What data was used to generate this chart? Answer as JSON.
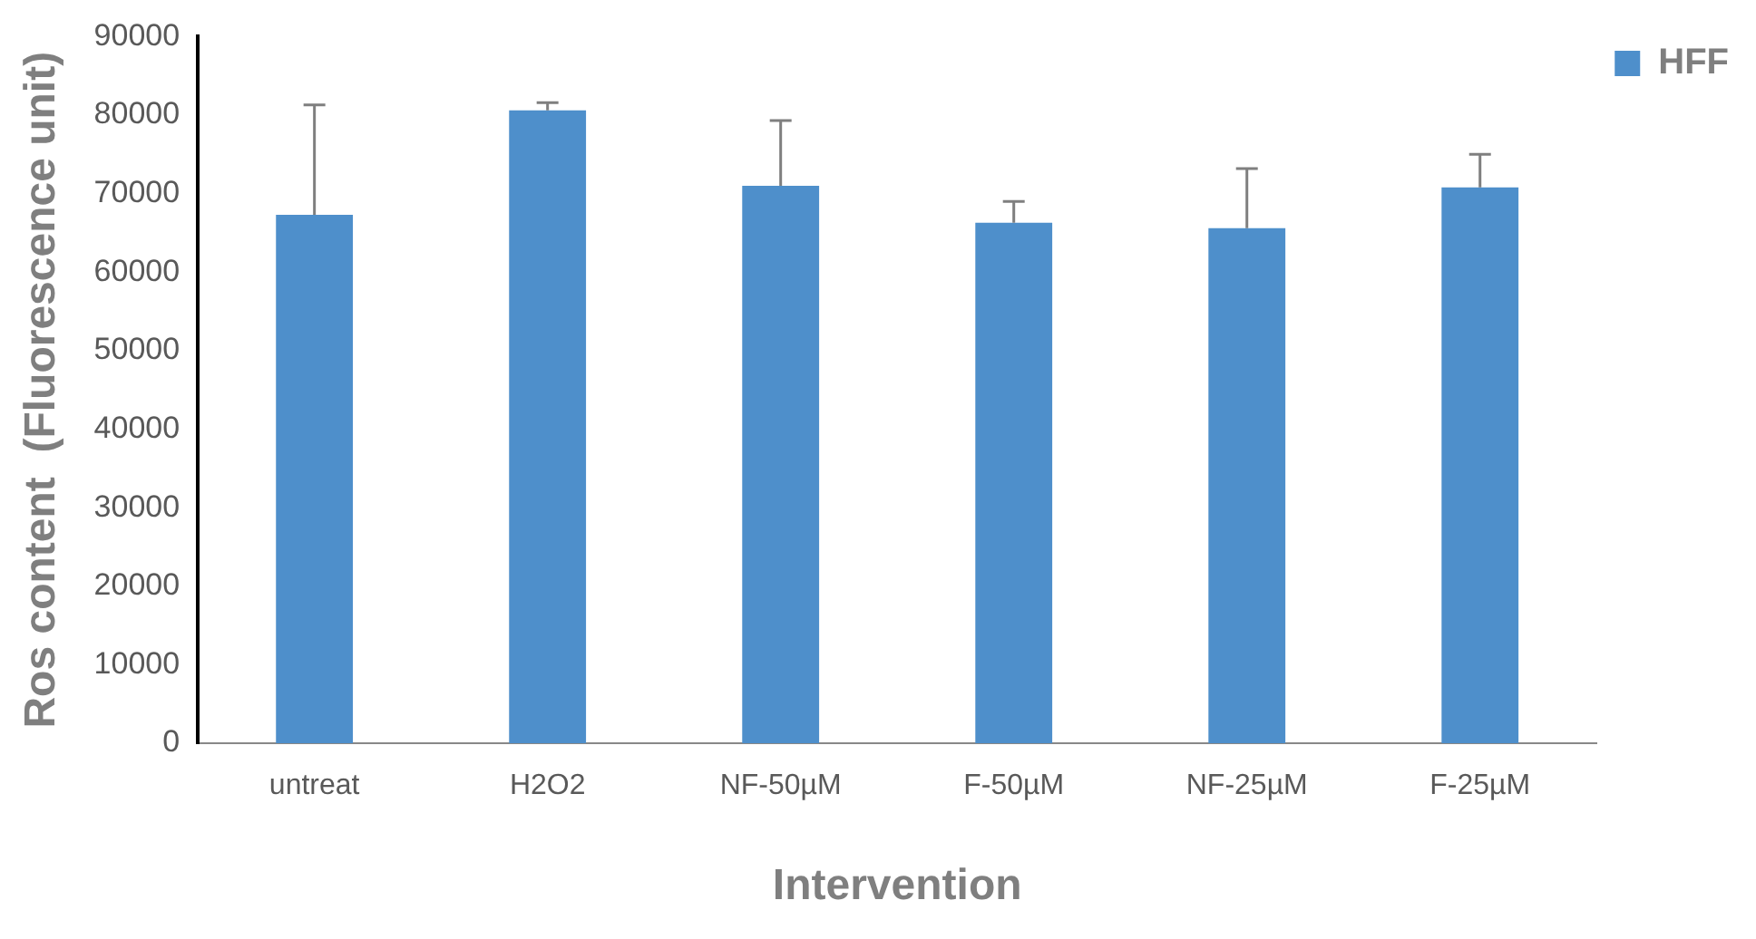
{
  "chart_data": {
    "type": "bar",
    "xlabel": "Intervention",
    "ylabel": "Ros content  (Fluorescence unit)",
    "categories": [
      "untreat",
      "H2O2",
      "NF-50µM",
      "F-50µM",
      "NF-25µM",
      "F-25µM"
    ],
    "series": [
      {
        "name": "HFF",
        "color": "#4e8fcb",
        "values": [
          67300,
          80600,
          71000,
          66300,
          65600,
          70800
        ],
        "errors": [
          [
            67300,
            81300
          ],
          [
            80600,
            81600
          ],
          [
            71000,
            79300
          ],
          [
            66300,
            69000
          ],
          [
            65600,
            73200
          ],
          [
            70800,
            75000
          ]
        ]
      }
    ],
    "ylim": [
      0,
      90000
    ],
    "yticks": [
      0,
      10000,
      20000,
      30000,
      40000,
      50000,
      60000,
      70000,
      80000,
      90000
    ],
    "grid": false,
    "legend": "top right"
  }
}
